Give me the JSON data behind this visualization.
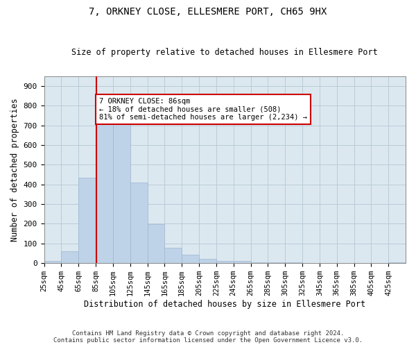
{
  "title": "7, ORKNEY CLOSE, ELLESMERE PORT, CH65 9HX",
  "subtitle": "Size of property relative to detached houses in Ellesmere Port",
  "xlabel": "Distribution of detached houses by size in Ellesmere Port",
  "ylabel": "Number of detached properties",
  "footer_line1": "Contains HM Land Registry data © Crown copyright and database right 2024.",
  "footer_line2": "Contains public sector information licensed under the Open Government Licence v3.0.",
  "bins_start": 25,
  "bin_width": 20,
  "num_bins": 21,
  "bar_values": [
    10,
    60,
    435,
    750,
    750,
    410,
    197,
    78,
    42,
    22,
    10,
    10,
    5,
    5,
    3,
    2,
    2,
    1,
    1,
    0,
    5
  ],
  "bin_labels": [
    "25sqm",
    "45sqm",
    "65sqm",
    "85sqm",
    "105sqm",
    "125sqm",
    "145sqm",
    "165sqm",
    "185sqm",
    "205sqm",
    "225sqm",
    "245sqm",
    "265sqm",
    "285sqm",
    "305sqm",
    "325sqm",
    "345sqm",
    "365sqm",
    "385sqm",
    "405sqm",
    "425sqm"
  ],
  "property_size": 86,
  "property_label": "7 ORKNEY CLOSE: 86sqm",
  "annotation_line1": "← 18% of detached houses are smaller (508)",
  "annotation_line2": "81% of semi-detached houses are larger (2,234) →",
  "bar_color": "#bed2e8",
  "bar_edge_color": "#a0b8d0",
  "line_color": "#cc0000",
  "annotation_box_color": "#ffffff",
  "annotation_box_edge": "#cc0000",
  "background_color": "#ffffff",
  "plot_bg_color": "#dce8f0",
  "grid_color": "#b8ccd8",
  "ylim": [
    0,
    950
  ],
  "xlim_left": 25,
  "xlim_right": 445
}
